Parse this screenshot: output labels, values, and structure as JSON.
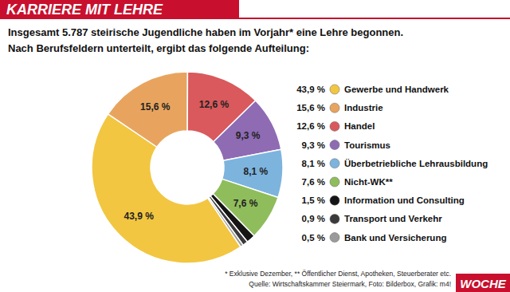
{
  "chart_data": {
    "type": "pie",
    "header": "KARRIERE MIT LEHRE",
    "title": "Insgesamt 5.787 steirische Jugendliche haben im Vorjahr* eine Lehre begonnen.",
    "subtitle": "Nach Berufsfeldern unterteilt, ergibt das folgende Aufteilung:",
    "categories": [
      "Gewerbe und Handwerk",
      "Industrie",
      "Handel",
      "Tourismus",
      "Überbetriebliche Lehrausbildung",
      "Nicht-WK**",
      "Information und Consulting",
      "Transport und Verkehr",
      "Bank und Versicherung"
    ],
    "values": [
      43.9,
      15.6,
      12.6,
      9.3,
      8.1,
      7.6,
      1.5,
      0.9,
      0.5
    ],
    "value_labels": [
      "43,9 %",
      "15,6 %",
      "12,6 %",
      "9,3 %",
      "8,1 %",
      "7,6 %",
      "1,5 %",
      "0,9 %",
      "0,5 %"
    ],
    "colors": [
      "#f2c641",
      "#e8a45e",
      "#d9595c",
      "#8e6bb3",
      "#7db4de",
      "#8fbd5b",
      "#151515",
      "#3a3a3a",
      "#9a9a9a"
    ],
    "data_labels": true,
    "legend": "right",
    "notes": "* Exklusive Dezember, ** Öffentlicher Dienst, Apotheken, Steuerberater etc.",
    "source": "Quelle: Wirtschaftskammer Steiermark, Foto: Bilderbox, Grafik: m4!",
    "logo": "WOCHE"
  }
}
